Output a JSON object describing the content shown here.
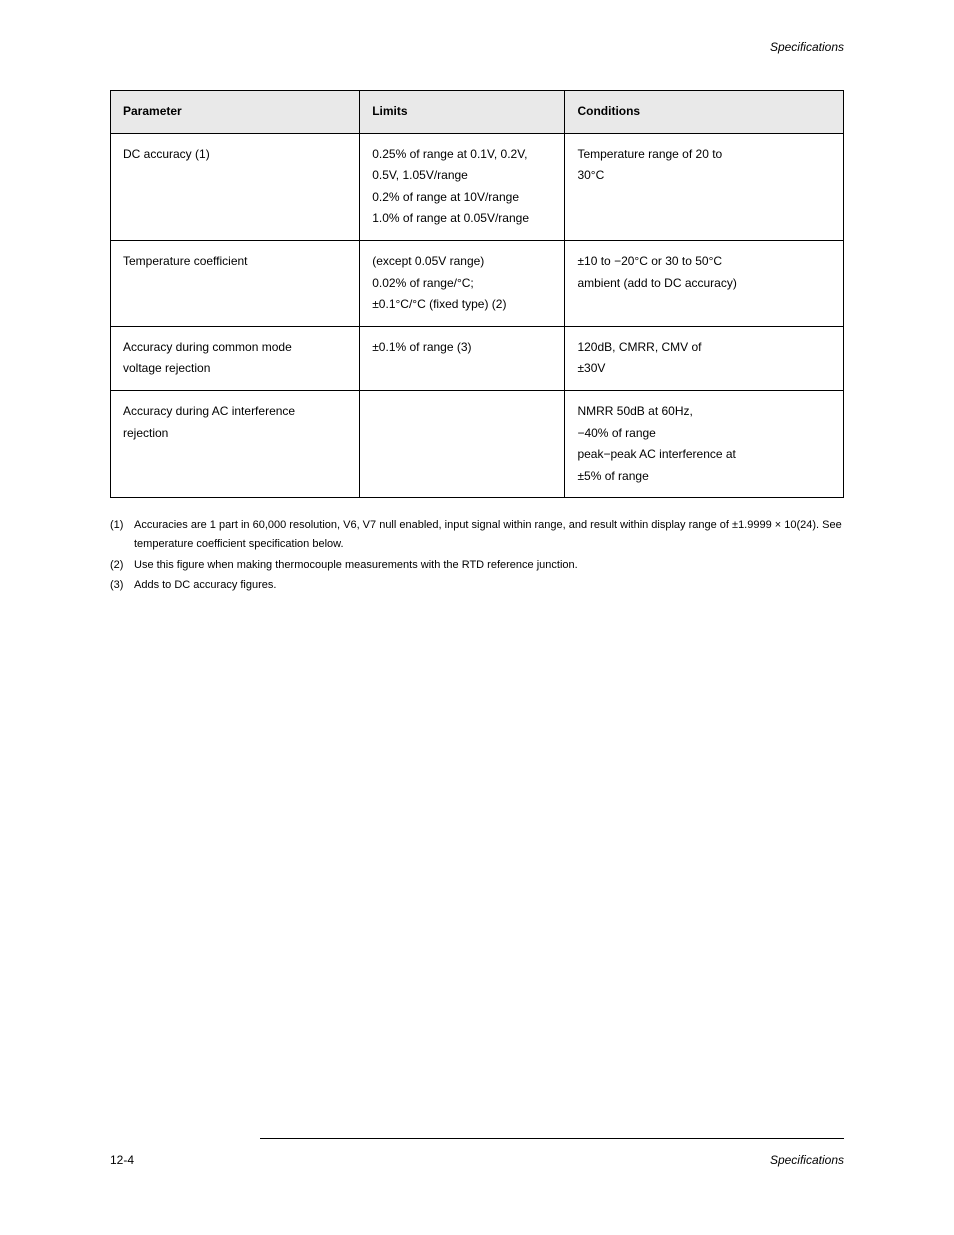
{
  "header": {
    "title": "Specifications"
  },
  "table": {
    "columns": [
      "Parameter",
      "Limits",
      "Conditions"
    ],
    "col_widths_percent": [
      34,
      28,
      38
    ],
    "header_bg": "#e9e9e9",
    "border_color": "#000000",
    "font_size_pt": 9,
    "rows": [
      {
        "param_lines": [
          "DC accuracy (1)"
        ],
        "limits_lines": [
          "0.25% of range at 0.1V, 0.2V,",
          "0.5V, 1.05V/range",
          "0.2% of range at 10V/range",
          "1.0% of range at 0.05V/range"
        ],
        "cond_lines": [
          "Temperature range of 20 to",
          "30°C"
        ]
      },
      {
        "param_lines": [
          "Temperature coefficient"
        ],
        "limits_lines": [
          "(except 0.05V range)",
          "0.02% of range/°C;",
          "±0.1°C/°C (fixed type) (2)"
        ],
        "cond_lines": [
          "±10 to −20°C or 30 to 50°C",
          "ambient (add to DC accuracy)"
        ]
      },
      {
        "param_lines": [
          "Accuracy during common mode",
          "voltage rejection"
        ],
        "limits_lines": [
          "±0.1% of range (3)"
        ],
        "cond_lines": [
          "120dB, CMRR, CMV of",
          "±30V"
        ]
      },
      {
        "param_lines": [
          "Accuracy during AC interference",
          "rejection"
        ],
        "limits_lines": [
          ""
        ],
        "cond_lines": [
          "NMRR 50dB at 60Hz,",
          "−40% of range",
          "peak−peak AC interference at",
          "±5% of range"
        ]
      }
    ]
  },
  "notes": {
    "items": [
      {
        "num": "(1)",
        "text": "Accuracies are 1 part in 60,000 resolution, V6, V7 null enabled, input signal within range, and result within display range of ±1.9999 × 10(24). See temperature coefficient specification below."
      },
      {
        "num": "(2)",
        "text": "Use this figure when making thermocouple measurements with the RTD reference junction."
      },
      {
        "num": "(3)",
        "text": "Adds to DC accuracy figures."
      }
    ]
  },
  "footer": {
    "left": "12-4",
    "right": "Specifications"
  }
}
